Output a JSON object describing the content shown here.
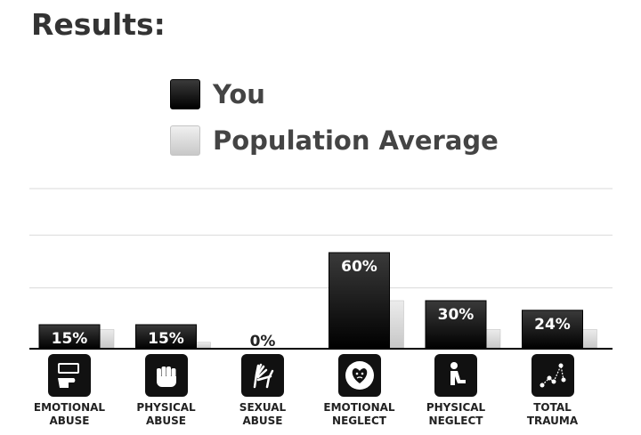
{
  "header": {
    "title": "Results:"
  },
  "legend": {
    "you_label": "You",
    "population_label": "Population Average"
  },
  "chart_data": {
    "type": "bar",
    "categories": [
      "EMOTIONAL ABUSE",
      "PHYSICAL ABUSE",
      "SEXUAL ABUSE",
      "EMOTIONAL NEGLECT",
      "PHYSICAL NEGLECT",
      "TOTAL TRAUMA"
    ],
    "series": [
      {
        "name": "You",
        "values": [
          15,
          15,
          0,
          60,
          30,
          24
        ],
        "labels": [
          "15%",
          "15%",
          "0%",
          "60%",
          "30%",
          "24%"
        ]
      },
      {
        "name": "Population Average",
        "values": [
          12,
          4,
          0,
          30,
          12,
          12
        ]
      }
    ],
    "ylim": [
      0,
      100
    ],
    "grid": true,
    "legend_position": "top",
    "colors": {
      "you": "#000000",
      "population": "#d8d8d8"
    }
  },
  "categories_display": [
    {
      "line1": "EMOTIONAL",
      "line2": "ABUSE",
      "icon": "hand-pointing-icon"
    },
    {
      "line1": "PHYSICAL",
      "line2": "ABUSE",
      "icon": "fist-icon"
    },
    {
      "line1": "SEXUAL",
      "line2": "ABUSE",
      "icon": "grabbing-hands-icon"
    },
    {
      "line1": "EMOTIONAL",
      "line2": "NEGLECT",
      "icon": "sad-heart-icon"
    },
    {
      "line1": "PHYSICAL",
      "line2": "NEGLECT",
      "icon": "sitting-person-icon"
    },
    {
      "line1": "TOTAL",
      "line2": "TRAUMA",
      "icon": "connected-dots-icon"
    }
  ]
}
